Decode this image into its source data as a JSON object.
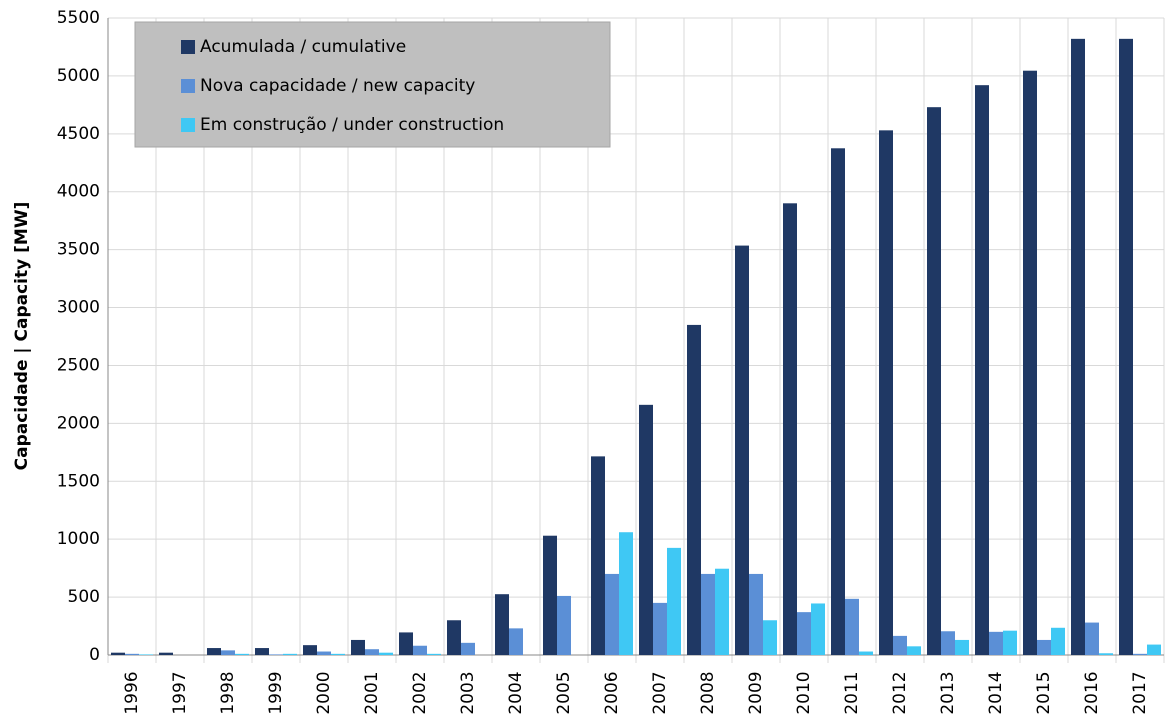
{
  "chart_data": {
    "type": "bar",
    "ylabel": "Capacidade | Capacity [MW]",
    "categories": [
      "1996",
      "1997",
      "1998",
      "1999",
      "2000",
      "2001",
      "2002",
      "2003",
      "2004",
      "2005",
      "2006",
      "2007",
      "2008",
      "2009",
      "2010",
      "2011",
      "2012",
      "2013",
      "2014",
      "2015",
      "2016",
      "2017"
    ],
    "series": [
      {
        "name": "Acumulada / cumulative",
        "color": "#1f3864",
        "values": [
          20,
          20,
          60,
          60,
          85,
          130,
          195,
          300,
          525,
          1030,
          1715,
          2160,
          2850,
          3535,
          3900,
          4375,
          4530,
          4730,
          4920,
          5045,
          5320,
          5320
        ]
      },
      {
        "name": "Nova capacidade / new capacity",
        "color": "#5b8fd6",
        "values": [
          10,
          0,
          40,
          5,
          30,
          50,
          80,
          105,
          230,
          510,
          700,
          450,
          700,
          700,
          370,
          485,
          165,
          205,
          200,
          130,
          280,
          10
        ]
      },
      {
        "name": "Em construção / under construction",
        "color": "#3fc8f4",
        "values": [
          5,
          0,
          10,
          10,
          10,
          20,
          10,
          0,
          0,
          0,
          1060,
          925,
          745,
          300,
          445,
          30,
          75,
          130,
          210,
          235,
          15,
          90
        ]
      }
    ],
    "ylim": [
      0,
      5500
    ],
    "yticks": [
      0,
      500,
      1000,
      1500,
      2000,
      2500,
      3000,
      3500,
      4000,
      4500,
      5000,
      5500
    ],
    "grid": true,
    "legend": "top-left"
  }
}
